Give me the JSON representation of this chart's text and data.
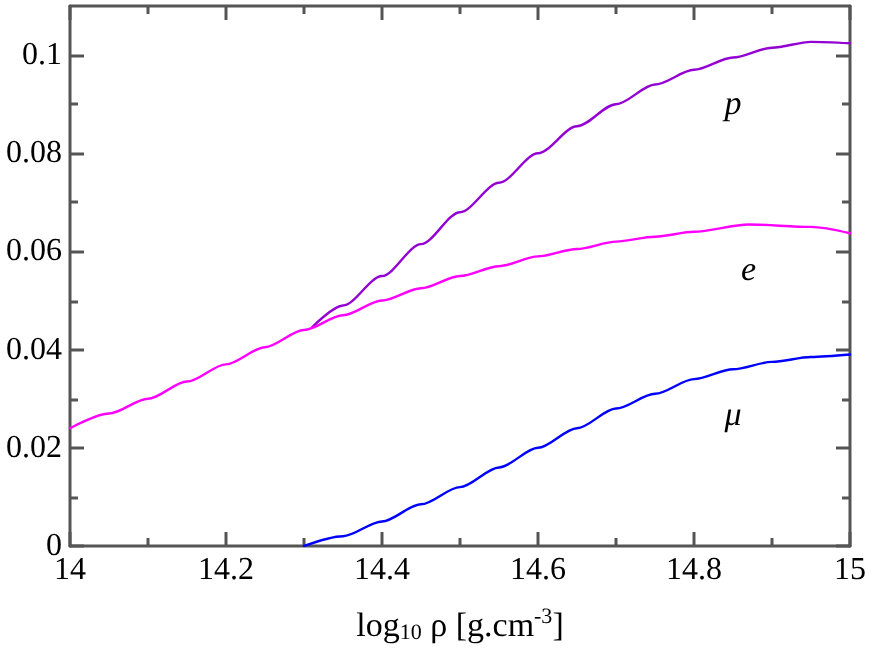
{
  "chart_data": {
    "type": "line",
    "xlabel": "log$_{10}$ ρ [g.cm$^{-3}$]",
    "xlim": [
      14,
      15
    ],
    "xticks": [
      14,
      14.2,
      14.4,
      14.6,
      14.8,
      15
    ],
    "ylim": [
      0,
      0.11
    ],
    "yticks": [
      0,
      0.02,
      0.04,
      0.06,
      0.08,
      0.1
    ],
    "grid": false,
    "marker": "none",
    "line_style": "solid",
    "series": [
      {
        "name": "p",
        "color": "#9400d3",
        "x": [
          14.31,
          14.35,
          14.4,
          14.45,
          14.5,
          14.55,
          14.6,
          14.65,
          14.7,
          14.75,
          14.8,
          14.85,
          14.9,
          14.95,
          15
        ],
        "values": [
          0.0445,
          0.049,
          0.055,
          0.0615,
          0.068,
          0.074,
          0.08,
          0.0855,
          0.09,
          0.094,
          0.097,
          0.0995,
          0.1015,
          0.1027,
          0.1024
        ]
      },
      {
        "name": "e",
        "color": "#ff00ff",
        "x": [
          14,
          14.05,
          14.1,
          14.15,
          14.2,
          14.25,
          14.3,
          14.35,
          14.4,
          14.45,
          14.5,
          14.55,
          14.6,
          14.65,
          14.7,
          14.75,
          14.8,
          14.87,
          14.95,
          15
        ],
        "values": [
          0.024,
          0.027,
          0.03,
          0.0335,
          0.037,
          0.0405,
          0.044,
          0.047,
          0.05,
          0.0525,
          0.055,
          0.057,
          0.059,
          0.0605,
          0.062,
          0.063,
          0.064,
          0.0655,
          0.065,
          0.0637
        ]
      },
      {
        "name": "μ",
        "color": "#0000ff",
        "x": [
          14.3,
          14.35,
          14.4,
          14.45,
          14.5,
          14.55,
          14.6,
          14.65,
          14.7,
          14.75,
          14.8,
          14.85,
          14.9,
          14.95,
          15
        ],
        "values": [
          0,
          0.002,
          0.005,
          0.0085,
          0.012,
          0.016,
          0.02,
          0.024,
          0.028,
          0.031,
          0.034,
          0.036,
          0.0375,
          0.0385,
          0.039
        ]
      }
    ]
  }
}
